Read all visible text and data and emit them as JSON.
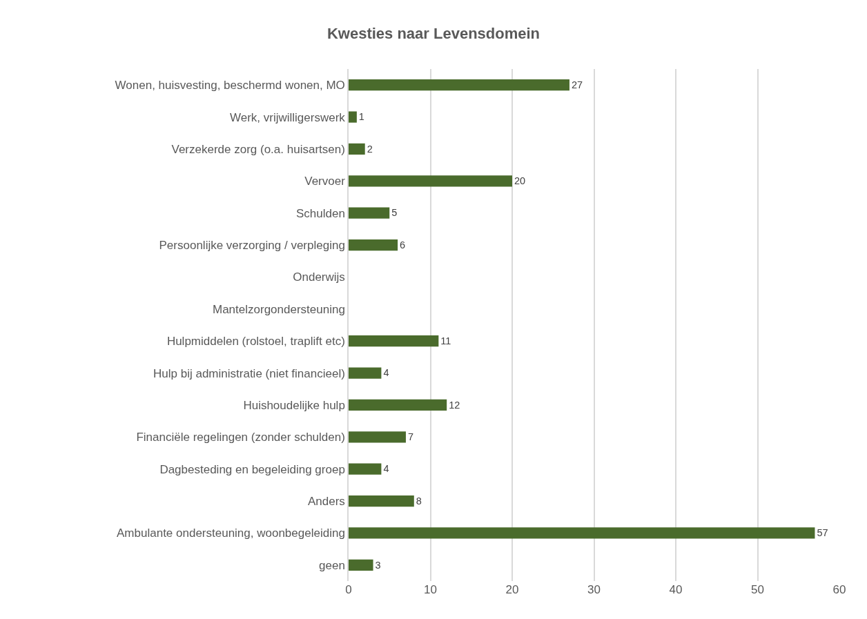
{
  "chart_data": {
    "type": "bar",
    "orientation": "horizontal",
    "title": "Kwesties naar Levensdomein",
    "categories": [
      "Wonen, huisvesting, beschermd wonen, MO",
      "Werk, vrijwilligerswerk",
      "Verzekerde zorg (o.a. huisartsen)",
      "Vervoer",
      "Schulden",
      "Persoonlijke verzorging / verpleging",
      "Onderwijs",
      "Mantelzorgondersteuning",
      "Hulpmiddelen (rolstoel, traplift etc)",
      "Hulp bij administratie (niet financieel)",
      "Huishoudelijke hulp",
      "Financiële regelingen (zonder schulden)",
      "Dagbesteding en begeleiding groep",
      "Anders",
      "Ambulante ondersteuning, woonbegeleiding",
      "geen"
    ],
    "values": [
      27,
      1,
      2,
      20,
      5,
      6,
      null,
      null,
      11,
      4,
      12,
      7,
      4,
      8,
      57,
      3
    ],
    "color": "#4a6b2c",
    "xlim": [
      0,
      60
    ],
    "xticks": [
      0,
      10,
      20,
      30,
      40,
      50,
      60
    ],
    "grid": "x",
    "data_labels": true
  }
}
